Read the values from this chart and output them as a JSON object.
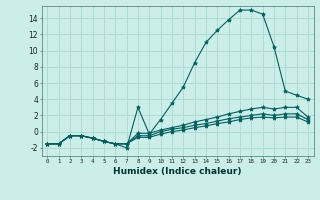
{
  "xlabel": "Humidex (Indice chaleur)",
  "background_color": "#cceee8",
  "grid_color": "#aad8d0",
  "line_color": "#006060",
  "xlim": [
    -0.5,
    23.5
  ],
  "ylim": [
    -3.0,
    15.5
  ],
  "xticks": [
    0,
    1,
    2,
    3,
    4,
    5,
    6,
    7,
    8,
    9,
    10,
    11,
    12,
    13,
    14,
    15,
    16,
    17,
    18,
    19,
    20,
    21,
    22,
    23
  ],
  "yticks": [
    -2,
    0,
    2,
    4,
    6,
    8,
    10,
    12,
    14
  ],
  "series": [
    {
      "x": [
        0,
        1,
        2,
        3,
        4,
        5,
        6,
        7,
        8,
        9,
        10,
        11,
        12,
        13,
        14,
        15,
        16,
        17,
        18,
        19,
        20,
        21,
        22,
        23
      ],
      "y": [
        -1.5,
        -1.5,
        -0.5,
        -0.5,
        -0.8,
        -1.2,
        -1.5,
        -2.0,
        3.0,
        -0.3,
        1.5,
        3.5,
        5.5,
        8.5,
        11.0,
        12.5,
        13.8,
        15.0,
        15.0,
        14.5,
        10.5,
        5.0,
        4.5,
        4.0
      ]
    },
    {
      "x": [
        0,
        1,
        2,
        3,
        4,
        5,
        6,
        7,
        8,
        9,
        10,
        11,
        12,
        13,
        14,
        15,
        16,
        17,
        18,
        19,
        20,
        21,
        22,
        23
      ],
      "y": [
        -1.5,
        -1.5,
        -0.5,
        -0.5,
        -0.8,
        -1.2,
        -1.5,
        -1.5,
        -0.2,
        -0.2,
        0.2,
        0.5,
        0.8,
        1.2,
        1.5,
        1.8,
        2.2,
        2.5,
        2.8,
        3.0,
        2.8,
        3.0,
        3.0,
        1.8
      ]
    },
    {
      "x": [
        0,
        1,
        2,
        3,
        4,
        5,
        6,
        7,
        8,
        9,
        10,
        11,
        12,
        13,
        14,
        15,
        16,
        17,
        18,
        19,
        20,
        21,
        22,
        23
      ],
      "y": [
        -1.5,
        -1.5,
        -0.5,
        -0.5,
        -0.8,
        -1.2,
        -1.5,
        -1.5,
        -0.5,
        -0.5,
        0.0,
        0.3,
        0.5,
        0.8,
        1.0,
        1.3,
        1.6,
        1.8,
        2.0,
        2.2,
        2.0,
        2.2,
        2.2,
        1.5
      ]
    },
    {
      "x": [
        0,
        1,
        2,
        3,
        4,
        5,
        6,
        7,
        8,
        9,
        10,
        11,
        12,
        13,
        14,
        15,
        16,
        17,
        18,
        19,
        20,
        21,
        22,
        23
      ],
      "y": [
        -1.5,
        -1.5,
        -0.5,
        -0.5,
        -0.8,
        -1.2,
        -1.5,
        -1.5,
        -0.7,
        -0.7,
        -0.3,
        0.0,
        0.2,
        0.5,
        0.7,
        1.0,
        1.2,
        1.5,
        1.7,
        1.8,
        1.7,
        1.8,
        1.8,
        1.2
      ]
    }
  ]
}
